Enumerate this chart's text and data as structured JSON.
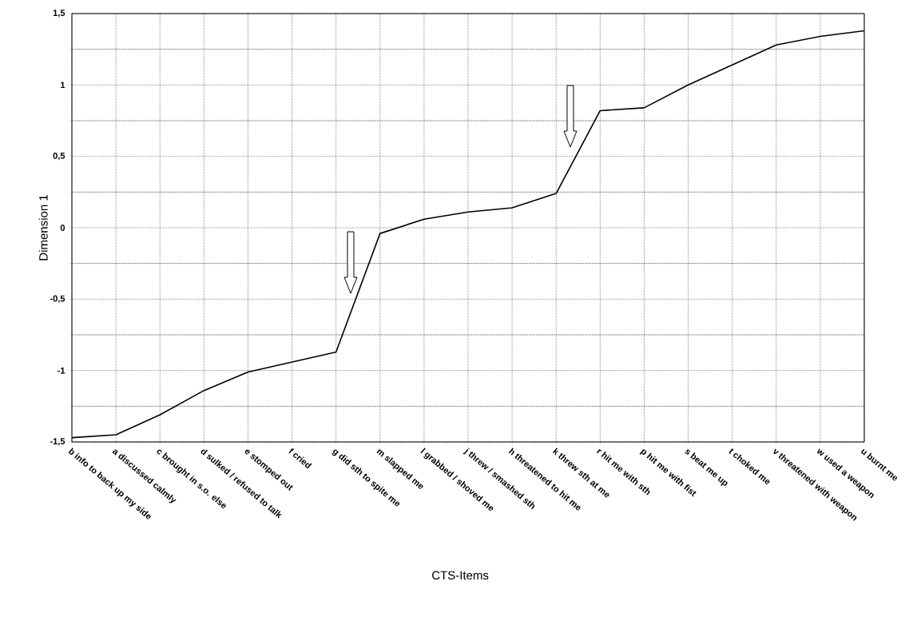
{
  "chart_data": {
    "type": "line",
    "xlabel": "CTS-Items",
    "ylabel": "Dimension 1",
    "categories": [
      "b info to back up my side",
      "a discussed calmly",
      "c brought in s.o. else",
      "d sulked / refused to talk",
      "e stomped out",
      "f cried",
      "g did sth to spite me",
      "m slapped me",
      "l grabbed / shoved me",
      "j threw / smashed sth",
      "h threatened to hit me",
      "k threw sth at me",
      "r hit me with sth",
      "p hit me with fist",
      "s beat me up",
      "t choked me",
      "v threatened with weapon",
      "w used a weapon",
      "u burnt me"
    ],
    "values": [
      -1.47,
      -1.45,
      -1.31,
      -1.14,
      -1.01,
      -0.94,
      -0.87,
      -0.04,
      0.06,
      0.11,
      0.14,
      0.24,
      0.82,
      0.84,
      1.0,
      1.14,
      1.28,
      1.34,
      1.38
    ],
    "color": "#000000",
    "ylim": [
      -1.5,
      1.5
    ],
    "yticks": [
      {
        "value": -1.5,
        "label": "-1,5"
      },
      -1,
      {
        "value": -0.5,
        "label": "-0,5"
      },
      0,
      {
        "value": 0.5,
        "label": "0,5"
      },
      1,
      {
        "value": 1.5,
        "label": "1,5"
      }
    ],
    "grid": true,
    "marker": "none",
    "line_style": "solid"
  }
}
